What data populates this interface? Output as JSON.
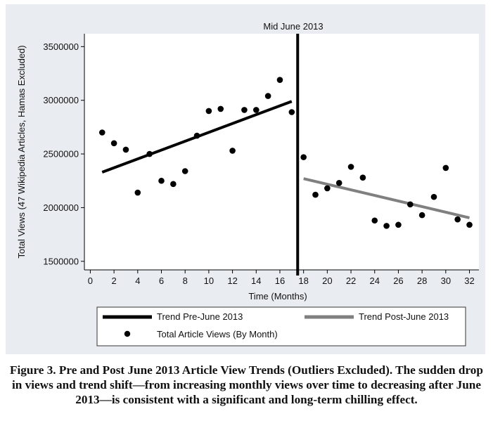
{
  "caption": "Figure 3. Pre and Post June 2013 Article View Trends (Outliers Excluded). The sudden drop in views and trend shift—from increasing monthly views over time to decreasing after June 2013—is consistent with a significant and long-term chilling effect.",
  "colors": {
    "panel_background": "#e9edf1",
    "plot_background": "#ffffff",
    "pre_trend": "#000000",
    "post_trend": "#808080",
    "points": "#000000",
    "cutoff_line": "#000000"
  },
  "chart_data": {
    "type": "scatter",
    "xlabel": "Time (Months)",
    "ylabel": "Total Views (47 Wikipedia Articles, Hamas Excluded)",
    "xlim": [
      -0.5,
      32.8
    ],
    "ylim": [
      1420000,
      3620000
    ],
    "x_ticks": [
      0,
      2,
      4,
      6,
      8,
      10,
      12,
      14,
      16,
      18,
      20,
      22,
      24,
      26,
      28,
      30,
      32
    ],
    "y_ticks": [
      1500000,
      2000000,
      2500000,
      3000000,
      3500000
    ],
    "grid": false,
    "legend_position": "bottom",
    "annotations": [
      {
        "text": "Mid June 2013",
        "x": 17.5,
        "kind": "vertical-line"
      }
    ],
    "series": [
      {
        "name": "Total Article Views (By Month)",
        "kind": "scatter",
        "points": [
          [
            1,
            2700000
          ],
          [
            2,
            2600000
          ],
          [
            3,
            2540000
          ],
          [
            4,
            2140000
          ],
          [
            5,
            2500000
          ],
          [
            6,
            2250000
          ],
          [
            7,
            2220000
          ],
          [
            8,
            2340000
          ],
          [
            9,
            2670000
          ],
          [
            10,
            2900000
          ],
          [
            11,
            2920000
          ],
          [
            12,
            2530000
          ],
          [
            13,
            2910000
          ],
          [
            14,
            2910000
          ],
          [
            15,
            3040000
          ],
          [
            16,
            3190000
          ],
          [
            17,
            2890000
          ],
          [
            18,
            2470000
          ],
          [
            19,
            2120000
          ],
          [
            20,
            2180000
          ],
          [
            21,
            2230000
          ],
          [
            22,
            2380000
          ],
          [
            23,
            2280000
          ],
          [
            24,
            1880000
          ],
          [
            25,
            1830000
          ],
          [
            26,
            1840000
          ],
          [
            27,
            2030000
          ],
          [
            28,
            1930000
          ],
          [
            29,
            2100000
          ],
          [
            30,
            2370000
          ],
          [
            31,
            1890000
          ],
          [
            32,
            1840000
          ]
        ]
      },
      {
        "name": "Trend Pre-June 2013",
        "kind": "line",
        "points": [
          [
            1,
            2330000
          ],
          [
            17,
            2990000
          ]
        ]
      },
      {
        "name": "Trend Post-June 2013",
        "kind": "line",
        "points": [
          [
            18,
            2270000
          ],
          [
            32,
            1905000
          ]
        ]
      }
    ]
  }
}
